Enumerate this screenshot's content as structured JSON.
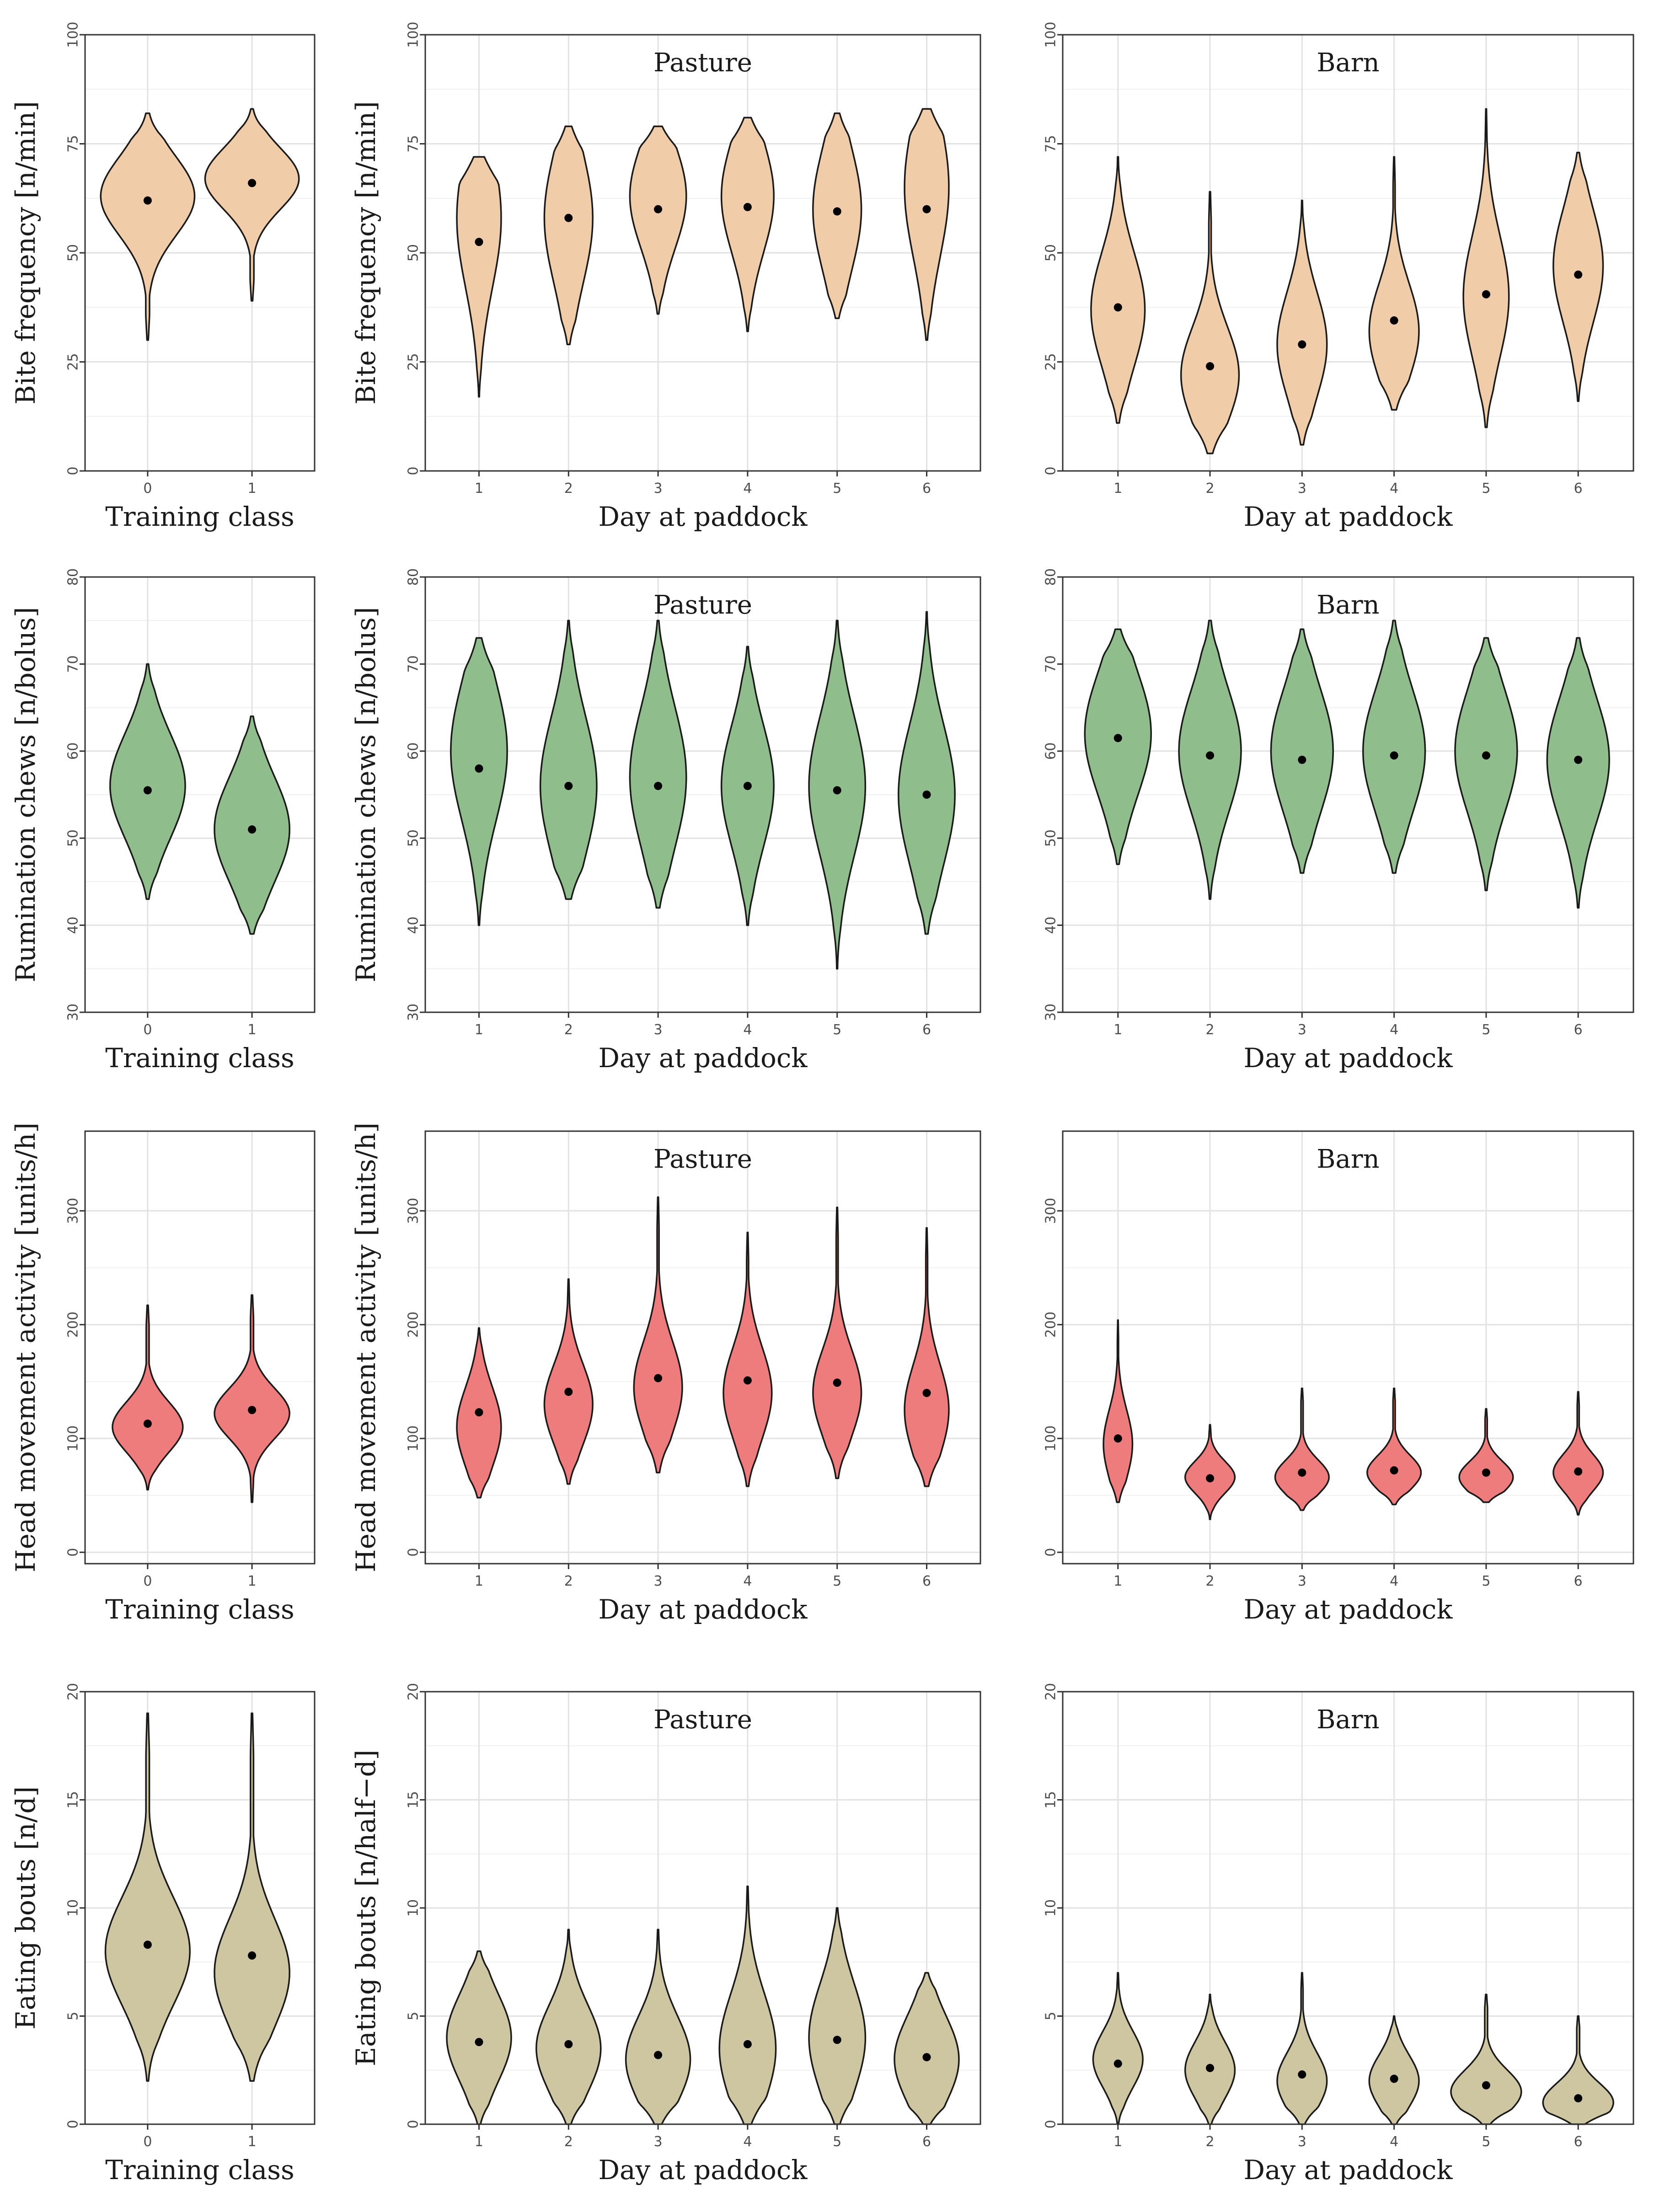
{
  "chart_data": {
    "type": "violin",
    "rows": [
      {
        "metric": "Bite frequency",
        "color": "#F0CCA8",
        "yticks": [
          0,
          25,
          50,
          75,
          100
        ],
        "ylim": [
          0,
          100
        ],
        "panels": [
          {
            "title": "",
            "ylabel": "Bite frequency [n/min]",
            "xlabel": "Training class",
            "categories": [
              "0",
              "1"
            ],
            "violins": [
              {
                "min": 30,
                "max": 82,
                "mean": 62,
                "peak": 63,
                "peakWidth": 1.0,
                "spread": 9
              },
              {
                "min": 39,
                "max": 83,
                "mean": 66,
                "peak": 67,
                "peakWidth": 1.0,
                "spread": 7
              }
            ]
          },
          {
            "title": "Pasture",
            "ylabel": "Bite frequency [n/min]",
            "xlabel": "Day at paddock",
            "categories": [
              "1",
              "2",
              "3",
              "4",
              "5",
              "6"
            ],
            "violins": [
              {
                "min": 17,
                "max": 72,
                "mean": 52.5,
                "peak": 58,
                "peakWidth": 0.55,
                "spread": 16
              },
              {
                "min": 29,
                "max": 79,
                "mean": 58,
                "peak": 58,
                "peakWidth": 0.6,
                "spread": 15
              },
              {
                "min": 36,
                "max": 79,
                "mean": 60,
                "peak": 63,
                "peakWidth": 0.7,
                "spread": 12
              },
              {
                "min": 32,
                "max": 81,
                "mean": 60.5,
                "peak": 63,
                "peakWidth": 0.65,
                "spread": 13
              },
              {
                "min": 35,
                "max": 82,
                "mean": 59.5,
                "peak": 60,
                "peakWidth": 0.6,
                "spread": 14
              },
              {
                "min": 30,
                "max": 83,
                "mean": 60,
                "peak": 65,
                "peakWidth": 0.55,
                "spread": 16
              }
            ]
          },
          {
            "title": "Barn",
            "ylabel": "",
            "xlabel": "Day at paddock",
            "categories": [
              "1",
              "2",
              "3",
              "4",
              "5",
              "6"
            ],
            "violins": [
              {
                "min": 11,
                "max": 72,
                "mean": 37.5,
                "peak": 37,
                "peakWidth": 0.65,
                "spread": 13
              },
              {
                "min": 4,
                "max": 64,
                "mean": 24,
                "peak": 22,
                "peakWidth": 0.7,
                "spread": 11
              },
              {
                "min": 6,
                "max": 62,
                "mean": 29,
                "peak": 29,
                "peakWidth": 0.6,
                "spread": 12
              },
              {
                "min": 14,
                "max": 72,
                "mean": 34.5,
                "peak": 32,
                "peakWidth": 0.6,
                "spread": 11
              },
              {
                "min": 10,
                "max": 83,
                "mean": 40.5,
                "peak": 40,
                "peakWidth": 0.55,
                "spread": 14
              },
              {
                "min": 16,
                "max": 73,
                "mean": 45,
                "peak": 47,
                "peakWidth": 0.6,
                "spread": 13
              }
            ]
          }
        ]
      },
      {
        "metric": "Rumination chews",
        "color": "#8FBD8C",
        "yticks": [
          30,
          40,
          50,
          60,
          70,
          80
        ],
        "ylim": [
          30,
          80
        ],
        "panels": [
          {
            "title": "",
            "ylabel": "Rumination chews [n/bolus]",
            "xlabel": "Training class",
            "categories": [
              "0",
              "1"
            ],
            "violins": [
              {
                "min": 43,
                "max": 70,
                "mean": 55.5,
                "peak": 56,
                "peakWidth": 0.8,
                "spread": 6
              },
              {
                "min": 39,
                "max": 64,
                "mean": 51,
                "peak": 51,
                "peakWidth": 0.8,
                "spread": 6
              }
            ]
          },
          {
            "title": "Pasture",
            "ylabel": "Rumination chews [n/bolus]",
            "xlabel": "Day at paddock",
            "categories": [
              "1",
              "2",
              "3",
              "4",
              "5",
              "6"
            ],
            "violins": [
              {
                "min": 40,
                "max": 73,
                "mean": 58,
                "peak": 60,
                "peakWidth": 0.7,
                "spread": 8
              },
              {
                "min": 43,
                "max": 75,
                "mean": 56,
                "peak": 56,
                "peakWidth": 0.7,
                "spread": 8
              },
              {
                "min": 42,
                "max": 75,
                "mean": 56,
                "peak": 57,
                "peakWidth": 0.7,
                "spread": 8
              },
              {
                "min": 40,
                "max": 72,
                "mean": 56,
                "peak": 56,
                "peakWidth": 0.65,
                "spread": 7
              },
              {
                "min": 35,
                "max": 75,
                "mean": 55.5,
                "peak": 56,
                "peakWidth": 0.7,
                "spread": 8
              },
              {
                "min": 39,
                "max": 76,
                "mean": 55,
                "peak": 55,
                "peakWidth": 0.7,
                "spread": 8
              }
            ]
          },
          {
            "title": "Barn",
            "ylabel": "",
            "xlabel": "Day at paddock",
            "categories": [
              "1",
              "2",
              "3",
              "4",
              "5",
              "6"
            ],
            "violins": [
              {
                "min": 47,
                "max": 74,
                "mean": 61.5,
                "peak": 62,
                "peakWidth": 0.8,
                "spread": 7
              },
              {
                "min": 43,
                "max": 75,
                "mean": 59.5,
                "peak": 60,
                "peakWidth": 0.75,
                "spread": 7
              },
              {
                "min": 46,
                "max": 74,
                "mean": 59,
                "peak": 60,
                "peakWidth": 0.75,
                "spread": 7
              },
              {
                "min": 46,
                "max": 75,
                "mean": 59.5,
                "peak": 60,
                "peakWidth": 0.75,
                "spread": 7
              },
              {
                "min": 44,
                "max": 73,
                "mean": 59.5,
                "peak": 60,
                "peakWidth": 0.75,
                "spread": 7
              },
              {
                "min": 42,
                "max": 73,
                "mean": 59,
                "peak": 59,
                "peakWidth": 0.75,
                "spread": 7
              }
            ]
          }
        ]
      },
      {
        "metric": "Head movement activity",
        "color": "#EF7C7C",
        "yticks": [
          0,
          100,
          200,
          300
        ],
        "ylim": [
          -10,
          370
        ],
        "panels": [
          {
            "title": "",
            "ylabel": "Head movement activity [units/h]",
            "xlabel": "Training class",
            "categories": [
              "0",
              "1"
            ],
            "violins": [
              {
                "min": 55,
                "max": 217,
                "mean": 113,
                "peak": 110,
                "peakWidth": 0.75,
                "spread": 22
              },
              {
                "min": 44,
                "max": 226,
                "mean": 125,
                "peak": 122,
                "peakWidth": 0.8,
                "spread": 22
              }
            ]
          },
          {
            "title": "Pasture",
            "ylabel": "Head movement activity [units/h]",
            "xlabel": "Day at paddock",
            "categories": [
              "1",
              "2",
              "3",
              "4",
              "5",
              "6"
            ],
            "violins": [
              {
                "min": 48,
                "max": 197,
                "mean": 123,
                "peak": 110,
                "peakWidth": 0.55,
                "spread": 35
              },
              {
                "min": 60,
                "max": 240,
                "mean": 141,
                "peak": 130,
                "peakWidth": 0.6,
                "spread": 35
              },
              {
                "min": 70,
                "max": 312,
                "mean": 153,
                "peak": 145,
                "peakWidth": 0.6,
                "spread": 40
              },
              {
                "min": 58,
                "max": 281,
                "mean": 151,
                "peak": 140,
                "peakWidth": 0.6,
                "spread": 40
              },
              {
                "min": 65,
                "max": 303,
                "mean": 149,
                "peak": 140,
                "peakWidth": 0.6,
                "spread": 38
              },
              {
                "min": 58,
                "max": 285,
                "mean": 140,
                "peak": 125,
                "peakWidth": 0.55,
                "spread": 40
              }
            ]
          },
          {
            "title": "Barn",
            "ylabel": "",
            "xlabel": "Day at paddock",
            "categories": [
              "1",
              "2",
              "3",
              "4",
              "5",
              "6"
            ],
            "violins": [
              {
                "min": 44,
                "max": 204,
                "mean": 100,
                "peak": 95,
                "peakWidth": 0.35,
                "spread": 30
              },
              {
                "min": 29,
                "max": 112,
                "mean": 65,
                "peak": 66,
                "peakWidth": 0.6,
                "spread": 14
              },
              {
                "min": 37,
                "max": 144,
                "mean": 70,
                "peak": 66,
                "peakWidth": 0.65,
                "spread": 15
              },
              {
                "min": 42,
                "max": 144,
                "mean": 72,
                "peak": 70,
                "peakWidth": 0.65,
                "spread": 15
              },
              {
                "min": 44,
                "max": 126,
                "mean": 70,
                "peak": 66,
                "peakWidth": 0.65,
                "spread": 14
              },
              {
                "min": 33,
                "max": 141,
                "mean": 71,
                "peak": 70,
                "peakWidth": 0.6,
                "spread": 16
              }
            ]
          }
        ]
      },
      {
        "metric": "Eating bouts",
        "color": "#CDC6A0",
        "yticks": [
          0,
          5,
          10,
          15,
          20
        ],
        "ylim": [
          0,
          20
        ],
        "panels": [
          {
            "title": "",
            "ylabel": "Eating bouts [n/d]",
            "xlabel": "Training class",
            "categories": [
              "0",
              "1"
            ],
            "violins": [
              {
                "min": 2,
                "max": 19,
                "mean": 8.3,
                "peak": 8,
                "peakWidth": 0.9,
                "spread": 2.5
              },
              {
                "min": 2,
                "max": 19,
                "mean": 7.8,
                "peak": 7,
                "peakWidth": 0.8,
                "spread": 2.5
              }
            ]
          },
          {
            "title": "Pasture",
            "ylabel": "Eating bouts [n/half−d]",
            "xlabel": "Day at paddock",
            "categories": [
              "1",
              "2",
              "3",
              "4",
              "5",
              "6"
            ],
            "violins": [
              {
                "min": 0,
                "max": 8,
                "mean": 3.8,
                "peak": 4,
                "peakWidth": 0.8,
                "spread": 2
              },
              {
                "min": 0,
                "max": 9,
                "mean": 3.7,
                "peak": 3.5,
                "peakWidth": 0.8,
                "spread": 2
              },
              {
                "min": 0,
                "max": 9,
                "mean": 3.2,
                "peak": 3,
                "peakWidth": 0.8,
                "spread": 2
              },
              {
                "min": 0,
                "max": 11,
                "mean": 3.7,
                "peak": 3.5,
                "peakWidth": 0.7,
                "spread": 2.5
              },
              {
                "min": 0,
                "max": 10,
                "mean": 3.9,
                "peak": 4,
                "peakWidth": 0.7,
                "spread": 2.5
              },
              {
                "min": 0,
                "max": 7,
                "mean": 3.1,
                "peak": 3,
                "peakWidth": 0.8,
                "spread": 2
              }
            ]
          },
          {
            "title": "Barn",
            "ylabel": "",
            "xlabel": "Day at paddock",
            "categories": [
              "1",
              "2",
              "3",
              "4",
              "5",
              "6"
            ],
            "violins": [
              {
                "min": 0,
                "max": 7,
                "mean": 2.8,
                "peak": 3,
                "peakWidth": 0.6,
                "spread": 1.3
              },
              {
                "min": 0,
                "max": 6,
                "mean": 2.6,
                "peak": 2.5,
                "peakWidth": 0.6,
                "spread": 1.3
              },
              {
                "min": 0,
                "max": 7,
                "mean": 2.3,
                "peak": 2,
                "peakWidth": 0.6,
                "spread": 1.3
              },
              {
                "min": 0,
                "max": 5,
                "mean": 2.1,
                "peak": 2,
                "peakWidth": 0.6,
                "spread": 1.2
              },
              {
                "min": 0,
                "max": 6,
                "mean": 1.8,
                "peak": 1.5,
                "peakWidth": 0.85,
                "spread": 1.0
              },
              {
                "min": 0,
                "max": 5,
                "mean": 1.2,
                "peak": 1,
                "peakWidth": 0.85,
                "spread": 0.9
              }
            ]
          }
        ]
      }
    ]
  }
}
